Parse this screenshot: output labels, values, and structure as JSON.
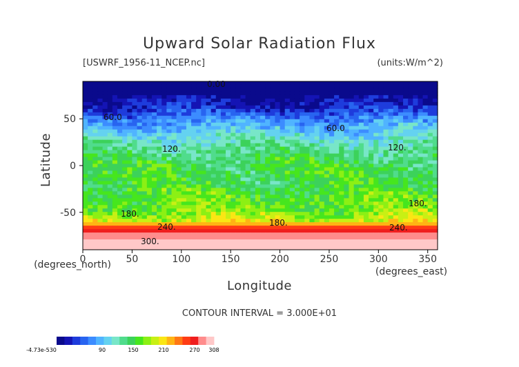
{
  "chart_data": {
    "type": "heatmap",
    "title": "Upward Solar Radiation Flux",
    "subtitle_left": "[USWRF_1956-11_NCEP.nc]",
    "subtitle_right": "(units:W/m^2)",
    "xlabel": "Longitude",
    "ylabel": "Latitude",
    "x_unit_label": "(degrees_east)",
    "y_unit_label": "(degrees_north)",
    "xlim": [
      0,
      360
    ],
    "ylim": [
      -90,
      90
    ],
    "x_ticks": [
      0,
      50,
      100,
      150,
      200,
      250,
      300,
      350
    ],
    "y_ticks": [
      50,
      0,
      -50
    ],
    "contour_interval_text": "CONTOUR INTERVAL = 3.000E+01",
    "contour_labels": [
      "0.00",
      "60.0",
      "60.0",
      "120.",
      "120.",
      "180.",
      "180.",
      "180.",
      "240.",
      "240.",
      "300."
    ],
    "latitude_profile": [
      {
        "lat": 85,
        "value": 0
      },
      {
        "lat": 70,
        "value": 15
      },
      {
        "lat": 60,
        "value": 35
      },
      {
        "lat": 50,
        "value": 65
      },
      {
        "lat": 40,
        "value": 90
      },
      {
        "lat": 30,
        "value": 110
      },
      {
        "lat": 20,
        "value": 125
      },
      {
        "lat": 10,
        "value": 140
      },
      {
        "lat": 0,
        "value": 150
      },
      {
        "lat": -10,
        "value": 150
      },
      {
        "lat": -20,
        "value": 150
      },
      {
        "lat": -30,
        "value": 160
      },
      {
        "lat": -40,
        "value": 165
      },
      {
        "lat": -50,
        "value": 175
      },
      {
        "lat": -58,
        "value": 190
      },
      {
        "lat": -63,
        "value": 230
      },
      {
        "lat": -70,
        "value": 270
      },
      {
        "lat": -78,
        "value": 290
      },
      {
        "lat": -85,
        "value": 300
      }
    ],
    "colorbar": {
      "tick_labels": [
        "-4.73e-530",
        "90",
        "150",
        "210",
        "270",
        "308"
      ],
      "colors": [
        "#0a0a8c",
        "#1414b4",
        "#1e3cdc",
        "#2864f0",
        "#3c8cff",
        "#50b4ff",
        "#64d2f0",
        "#78e6c8",
        "#50dc8c",
        "#3cd25a",
        "#46e61e",
        "#8cf014",
        "#c8f014",
        "#fae614",
        "#ffb414",
        "#ff7814",
        "#ff3c14",
        "#f01e1e",
        "#ff8c8c",
        "#ffc8c8"
      ]
    }
  }
}
